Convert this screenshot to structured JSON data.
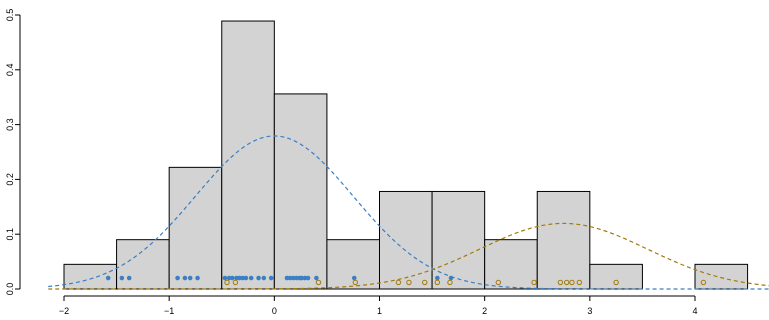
{
  "chart_data": {
    "type": "histogram",
    "title": "",
    "xlabel": "",
    "ylabel": "",
    "xlim": [
      -2.05,
      4.65
    ],
    "ylim": [
      0,
      0.5
    ],
    "x_ticks": [
      -2,
      -1,
      0,
      1,
      2,
      3,
      4
    ],
    "x_tick_labels": [
      "−2",
      "−1",
      "0",
      "1",
      "2",
      "3",
      "4"
    ],
    "y_ticks": [
      0.0,
      0.1,
      0.2,
      0.3,
      0.4,
      0.5
    ],
    "y_tick_labels": [
      "0.0",
      "0.1",
      "0.2",
      "0.3",
      "0.4",
      "0.5"
    ],
    "grid": false,
    "bar_fill": "#d3d3d3",
    "bar_edge": "#000000",
    "bins": [
      {
        "x0": -2.0,
        "x1": -1.5,
        "density": 0.045
      },
      {
        "x0": -1.5,
        "x1": -1.0,
        "density": 0.09
      },
      {
        "x0": -1.0,
        "x1": -0.5,
        "density": 0.222
      },
      {
        "x0": -0.5,
        "x1": 0.0,
        "density": 0.489
      },
      {
        "x0": 0.0,
        "x1": 0.5,
        "density": 0.356
      },
      {
        "x0": 0.5,
        "x1": 1.0,
        "density": 0.09
      },
      {
        "x0": 1.0,
        "x1": 1.5,
        "density": 0.178
      },
      {
        "x0": 1.5,
        "x1": 2.0,
        "density": 0.178
      },
      {
        "x0": 2.0,
        "x1": 2.5,
        "density": 0.09
      },
      {
        "x0": 2.5,
        "x1": 3.0,
        "density": 0.178
      },
      {
        "x0": 3.0,
        "x1": 3.5,
        "density": 0.045
      },
      {
        "x0": 3.5,
        "x1": 4.0,
        "density": 0.0
      },
      {
        "x0": 4.0,
        "x1": 4.5,
        "density": 0.045
      }
    ],
    "curves": [
      {
        "color": "#3b7fc4",
        "dash": "dashed",
        "mean": 0.0,
        "sd": 0.75,
        "weight": 0.525
      },
      {
        "color": "#a27a0a",
        "dash": "dashed",
        "mean": 2.75,
        "sd": 0.8,
        "weight": 0.24
      }
    ],
    "points_series_1": {
      "color": "#3b7fc4",
      "marker": "filled-circle",
      "y": 0.02,
      "x": [
        -1.58,
        -1.45,
        -1.38,
        -0.92,
        -0.85,
        -0.8,
        -0.73,
        -0.47,
        -0.43,
        -0.4,
        -0.36,
        -0.33,
        -0.3,
        -0.27,
        -0.22,
        -0.15,
        -0.1,
        -0.03,
        0.12,
        0.15,
        0.18,
        0.21,
        0.24,
        0.26,
        0.29,
        0.32,
        0.4,
        0.76,
        1.55,
        1.68
      ]
    },
    "points_series_2": {
      "color": "#a27a0a",
      "marker": "open-circle",
      "y": 0.012,
      "x": [
        -0.45,
        -0.37,
        0.42,
        0.77,
        1.18,
        1.28,
        1.43,
        1.55,
        1.67,
        2.13,
        2.47,
        2.72,
        2.78,
        2.83,
        2.9,
        3.25,
        4.08
      ]
    }
  }
}
